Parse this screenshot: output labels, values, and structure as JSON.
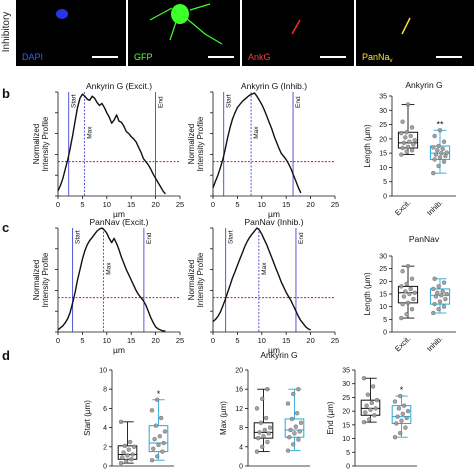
{
  "row_label": "Inhibitory",
  "micrographs": [
    {
      "label": "DAPI",
      "label_color": "#3a5bff"
    },
    {
      "label": "GFP",
      "label_color": "#5cff3a"
    },
    {
      "label": "AnkG",
      "label_color": "#ff3b3b"
    },
    {
      "label": "PanNa",
      "label_sub": "v",
      "label_color": "#ffe23a"
    }
  ],
  "panel_letters": {
    "b": "b",
    "c": "c",
    "d": "d"
  },
  "profile_common": {
    "ylabel_line1": "Normalized",
    "ylabel_line2": "Intensity Profile",
    "xlabel": "µm",
    "xlim": [
      0,
      25
    ],
    "ylim": [
      0,
      1.0
    ],
    "xticks": [
      0,
      5,
      10,
      15,
      20,
      25
    ],
    "yticks": [
      0,
      0.2,
      0.4,
      0.6,
      0.8,
      1.0
    ],
    "threshold": 0.33,
    "threshold_color": "#e8121b",
    "marker_color": "#2a2dcf",
    "start_label": "Start",
    "max_label": "Max",
    "end_label": "End"
  },
  "box_common": {
    "ylabel": "Length (µm)",
    "categories": [
      "Excit.",
      "Inhib."
    ],
    "colors": [
      "#111111",
      "#2aa7d9"
    ]
  },
  "chart_data": [
    {
      "id": "b1",
      "type": "line",
      "title": "Ankyrin G (Excit.)",
      "start": 2.2,
      "max": 5.4,
      "end": 20.0,
      "x": [
        0,
        0.5,
        1,
        1.5,
        2,
        2.5,
        3,
        3.5,
        4,
        4.5,
        5,
        5.5,
        6,
        6.5,
        7,
        7.5,
        8,
        8.5,
        9,
        9.5,
        10,
        10.5,
        11,
        11.5,
        12,
        12.5,
        13,
        13.5,
        14,
        14.5,
        15,
        15.5,
        16,
        16.5,
        17,
        17.5,
        18,
        18.5,
        19,
        19.5,
        20,
        20.5,
        21,
        21.5,
        22
      ],
      "y": [
        0.05,
        0.1,
        0.17,
        0.26,
        0.35,
        0.46,
        0.58,
        0.72,
        0.85,
        0.94,
        0.98,
        0.96,
        0.93,
        0.92,
        0.96,
        0.94,
        0.9,
        0.87,
        0.89,
        0.85,
        0.8,
        0.76,
        0.7,
        0.73,
        0.78,
        0.72,
        0.71,
        0.67,
        0.62,
        0.6,
        0.57,
        0.55,
        0.52,
        0.47,
        0.42,
        0.36,
        0.33,
        0.3,
        0.26,
        0.21,
        0.17,
        0.13,
        0.09,
        0.05,
        0.02
      ]
    },
    {
      "id": "b2",
      "type": "line",
      "title": "Ankyrin G (Inhib.)",
      "start": 2.2,
      "max": 7.8,
      "end": 16.4,
      "x": [
        0,
        0.5,
        1,
        1.5,
        2,
        2.5,
        3,
        3.5,
        4,
        4.5,
        5,
        5.5,
        6,
        6.5,
        7,
        7.5,
        8,
        8.5,
        9,
        9.5,
        10,
        10.5,
        11,
        11.5,
        12,
        12.5,
        13,
        13.5,
        14,
        14.5,
        15,
        15.5,
        16,
        16.5,
        17,
        17.5,
        18
      ],
      "y": [
        0.08,
        0.14,
        0.2,
        0.27,
        0.35,
        0.45,
        0.56,
        0.66,
        0.74,
        0.8,
        0.85,
        0.88,
        0.91,
        0.93,
        0.95,
        0.97,
        0.98,
        0.99,
        0.96,
        0.92,
        0.88,
        0.83,
        0.77,
        0.71,
        0.65,
        0.58,
        0.52,
        0.46,
        0.41,
        0.38,
        0.35,
        0.31,
        0.26,
        0.2,
        0.14,
        0.08,
        0.03
      ]
    },
    {
      "id": "bbox",
      "type": "box",
      "title": "Ankyrin G",
      "ylim": [
        0,
        35
      ],
      "yticks": [
        0,
        5,
        10,
        15,
        20,
        25,
        30,
        35
      ],
      "series": [
        {
          "category": "Excit.",
          "min": 14.5,
          "q1": 16.8,
          "median": 18.6,
          "q3": 22.3,
          "max": 32.0,
          "points": [
            14.5,
            15.5,
            16,
            16.8,
            17.2,
            18,
            18.6,
            19,
            19.5,
            20.5,
            21,
            22,
            22.3,
            24,
            26,
            32
          ]
        },
        {
          "category": "Inhib.",
          "min": 8.0,
          "q1": 12.8,
          "median": 15.0,
          "q3": 17.5,
          "max": 23.0,
          "significance": "**",
          "points": [
            8,
            10.5,
            12,
            12.8,
            13.5,
            14,
            14.5,
            15,
            15.2,
            16,
            16.5,
            17,
            17.5,
            19,
            21,
            23
          ]
        }
      ]
    },
    {
      "id": "c1",
      "type": "line",
      "title": "PanNav (Excit.)",
      "start": 3.0,
      "max": 9.3,
      "end": 17.6,
      "x": [
        0,
        0.5,
        1,
        1.5,
        2,
        2.5,
        3,
        3.5,
        4,
        4.5,
        5,
        5.5,
        6,
        6.5,
        7,
        7.5,
        8,
        8.5,
        9,
        9.5,
        10,
        10.5,
        11,
        11.5,
        12,
        12.5,
        13,
        13.5,
        14,
        14.5,
        15,
        15.5,
        16,
        16.5,
        17,
        17.5,
        18,
        18.5,
        19,
        19.5,
        20,
        20.5,
        21,
        21.5,
        22
      ],
      "y": [
        0.02,
        0.04,
        0.06,
        0.09,
        0.13,
        0.19,
        0.28,
        0.38,
        0.5,
        0.6,
        0.7,
        0.78,
        0.84,
        0.88,
        0.91,
        0.94,
        0.97,
        0.99,
        1.0,
        0.98,
        0.95,
        0.9,
        0.86,
        0.9,
        0.85,
        0.79,
        0.72,
        0.66,
        0.6,
        0.55,
        0.5,
        0.45,
        0.4,
        0.36,
        0.33,
        0.3,
        0.26,
        0.2,
        0.14,
        0.09,
        0.05,
        0.03,
        0.02,
        0.01,
        0.01
      ]
    },
    {
      "id": "c2",
      "type": "line",
      "title": "PanNav (Inhib.)",
      "start": 2.6,
      "max": 9.4,
      "end": 17.0,
      "x": [
        0,
        0.5,
        1,
        1.5,
        2,
        2.5,
        3,
        3.5,
        4,
        4.5,
        5,
        5.5,
        6,
        6.5,
        7,
        7.5,
        8,
        8.5,
        9,
        9.5,
        10,
        10.5,
        11,
        11.5,
        12,
        12.5,
        13,
        13.5,
        14,
        14.5,
        15,
        15.5,
        16,
        16.5,
        17,
        17.5,
        18,
        18.5,
        19,
        19.5,
        20
      ],
      "y": [
        0.1,
        0.12,
        0.15,
        0.19,
        0.25,
        0.31,
        0.38,
        0.45,
        0.52,
        0.58,
        0.64,
        0.7,
        0.76,
        0.82,
        0.87,
        0.91,
        0.94,
        0.97,
        1.0,
        0.98,
        0.94,
        0.89,
        0.84,
        0.78,
        0.72,
        0.66,
        0.6,
        0.54,
        0.48,
        0.43,
        0.38,
        0.34,
        0.3,
        0.25,
        0.2,
        0.15,
        0.11,
        0.08,
        0.05,
        0.03,
        0.02
      ]
    },
    {
      "id": "cbox",
      "type": "box",
      "title": "PanNav",
      "ylim": [
        0,
        30
      ],
      "yticks": [
        0,
        5,
        10,
        15,
        20,
        25,
        30
      ],
      "series": [
        {
          "category": "Excit.",
          "min": 5.5,
          "q1": 11.5,
          "median": 15.5,
          "q3": 18.0,
          "max": 26.0,
          "points": [
            5.5,
            7,
            9,
            11,
            11.5,
            13,
            14,
            15,
            15.5,
            16,
            17,
            18,
            19,
            21,
            24,
            26
          ]
        },
        {
          "category": "Inhib.",
          "min": 7.5,
          "q1": 11.0,
          "median": 14.5,
          "q3": 17.0,
          "max": 21.0,
          "points": [
            7.5,
            9,
            10,
            11,
            12,
            13,
            14,
            14.5,
            15,
            15.5,
            16,
            17,
            18,
            19.5,
            21
          ]
        }
      ]
    },
    {
      "id": "d1",
      "type": "box",
      "title": "",
      "ylabel": "Start (µm)",
      "ylim": [
        0,
        10
      ],
      "yticks": [
        0,
        2,
        4,
        6,
        8,
        10
      ],
      "series": [
        {
          "category": "Excit.",
          "min": 0.3,
          "q1": 0.7,
          "median": 1.2,
          "q3": 2.1,
          "max": 4.6,
          "points": [
            0.3,
            0.5,
            0.7,
            0.9,
            1.1,
            1.2,
            1.4,
            1.7,
            2.0,
            2.1,
            2.5,
            4.6
          ]
        },
        {
          "category": "Inhib.",
          "min": 0.6,
          "q1": 1.5,
          "median": 2.4,
          "q3": 4.2,
          "max": 6.9,
          "significance": "*",
          "points": [
            0.6,
            1.0,
            1.5,
            1.8,
            2.2,
            2.4,
            2.8,
            3.1,
            3.6,
            4.2,
            5.0,
            5.8,
            6.9
          ]
        }
      ]
    },
    {
      "id": "d2",
      "type": "box",
      "title": "Ankyrin G",
      "ylabel": "Max (µm)",
      "ylim": [
        0,
        20
      ],
      "yticks": [
        0,
        4,
        8,
        12,
        16,
        20
      ],
      "series": [
        {
          "category": "Excit.",
          "min": 3.0,
          "q1": 5.8,
          "median": 7.0,
          "q3": 9.0,
          "max": 16.0,
          "points": [
            3,
            4,
            5,
            5.8,
            6.2,
            6.8,
            7,
            7.5,
            8,
            9,
            10,
            12,
            14,
            16
          ]
        },
        {
          "category": "Inhib.",
          "min": 3.2,
          "q1": 6.0,
          "median": 7.5,
          "q3": 9.8,
          "max": 16.0,
          "points": [
            3.2,
            4.5,
            5.5,
            6,
            6.8,
            7.2,
            7.5,
            8.2,
            9,
            9.8,
            11,
            13,
            15,
            16
          ]
        }
      ]
    },
    {
      "id": "d3",
      "type": "box",
      "title": "",
      "ylabel": "End (µm)",
      "ylim": [
        0,
        35
      ],
      "yticks": [
        0,
        5,
        10,
        15,
        20,
        25,
        30,
        35
      ],
      "series": [
        {
          "category": "Excit.",
          "min": 16.0,
          "q1": 18.5,
          "median": 21.0,
          "q3": 24.0,
          "max": 32.0,
          "points": [
            16,
            17,
            18.5,
            19.5,
            20.5,
            21,
            22,
            23,
            24,
            26,
            29,
            32
          ]
        },
        {
          "category": "Inhib.",
          "min": 10.5,
          "q1": 15.5,
          "median": 18.0,
          "q3": 22.0,
          "max": 25.5,
          "significance": "*",
          "points": [
            10.5,
            12,
            14,
            15.5,
            16.5,
            17.5,
            18,
            19,
            20,
            21,
            22,
            23.5,
            25.5
          ]
        }
      ]
    }
  ]
}
